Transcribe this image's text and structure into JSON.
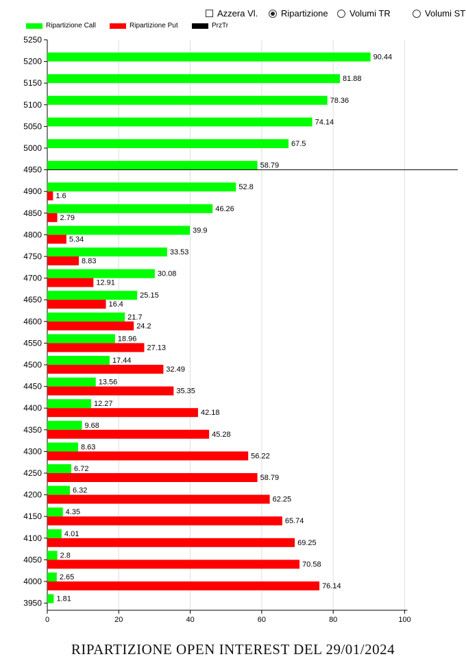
{
  "controls": {
    "azzera": {
      "label": "Azzera Vl.",
      "checked": false
    },
    "ripartizione": {
      "label": "Ripartizione",
      "selected": true
    },
    "volumi_tr": {
      "label": "Volumi TR",
      "selected": false
    },
    "volumi_st": {
      "label": "Volumi ST",
      "selected": false
    }
  },
  "chart_data": {
    "type": "bar",
    "orientation": "horizontal",
    "title": "RIPARTIZIONE OPEN INTEREST DEL 29/01/2024",
    "xlim": [
      0,
      100
    ],
    "ylim": [
      3950,
      5250
    ],
    "x_ticks": [
      0,
      20,
      40,
      60,
      80,
      100
    ],
    "y_ticks": [
      3950,
      4000,
      4050,
      4100,
      4150,
      4200,
      4250,
      4300,
      4350,
      4400,
      4450,
      4500,
      4550,
      4600,
      4650,
      4700,
      4750,
      4800,
      4850,
      4900,
      4950,
      5000,
      5050,
      5100,
      5150,
      5200,
      5250
    ],
    "grid": "vertical",
    "legend": "top-left",
    "legend_entries": [
      {
        "name": "Ripartizione Call",
        "color": "#00ff00"
      },
      {
        "name": "Ripartizione Put",
        "color": "#ff0000"
      },
      {
        "name": "PrzTr",
        "color": "#000000"
      }
    ],
    "series": [
      {
        "name": "Ripartizione Call",
        "color": "#00ff00",
        "strikes": [
          5200,
          5150,
          5100,
          5050,
          5000,
          4950,
          4900,
          4850,
          4800,
          4750,
          4700,
          4650,
          4600,
          4550,
          4500,
          4450,
          4400,
          4350,
          4300,
          4250,
          4200,
          4150,
          4100,
          4050,
          4000,
          3950
        ],
        "values": [
          90.44,
          81.88,
          78.36,
          74.14,
          67.5,
          58.79,
          52.8,
          46.26,
          39.9,
          33.53,
          30.08,
          25.15,
          21.7,
          18.96,
          17.44,
          13.56,
          12.27,
          9.68,
          8.63,
          6.72,
          6.32,
          4.35,
          4.01,
          2.8,
          2.65,
          1.81
        ]
      },
      {
        "name": "Ripartizione Put",
        "color": "#ff0000",
        "strikes": [
          4900,
          4850,
          4800,
          4750,
          4700,
          4650,
          4600,
          4550,
          4500,
          4450,
          4400,
          4350,
          4300,
          4250,
          4200,
          4150,
          4100,
          4050,
          4000
        ],
        "values": [
          1.6,
          2.79,
          5.34,
          8.83,
          12.91,
          16.4,
          24.2,
          27.13,
          32.49,
          35.35,
          42.18,
          45.28,
          56.22,
          58.79,
          62.25,
          65.74,
          69.25,
          70.58,
          76.14
        ]
      }
    ],
    "price_line": {
      "name": "PrzTr",
      "strike": 4950,
      "color": "#000000"
    }
  }
}
